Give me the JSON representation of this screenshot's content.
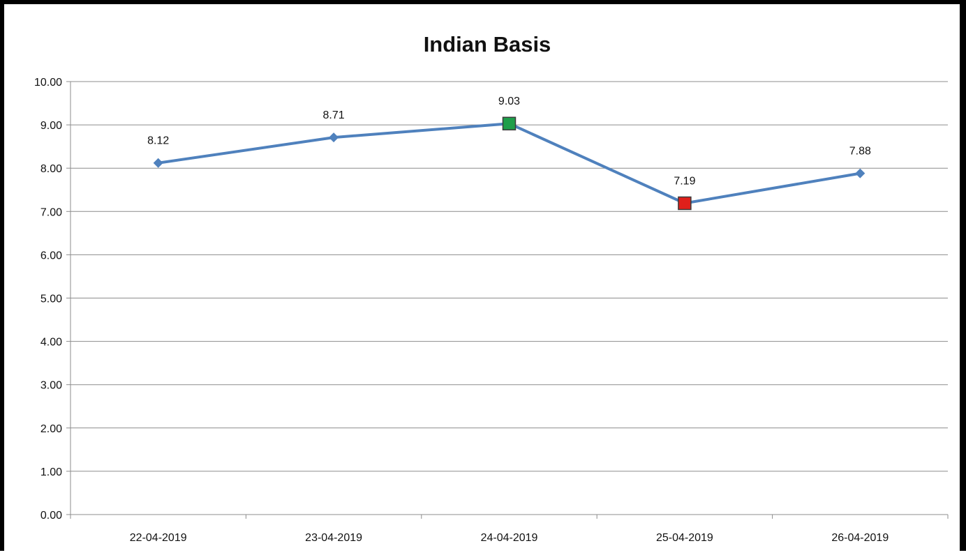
{
  "chart_data": {
    "type": "line",
    "title": "Indian Basis",
    "xlabel": "",
    "ylabel": "",
    "categories": [
      "22-04-2019",
      "23-04-2019",
      "24-04-2019",
      "25-04-2019",
      "26-04-2019"
    ],
    "values": [
      8.12,
      8.71,
      9.03,
      7.19,
      7.88
    ],
    "data_labels": [
      "8.12",
      "8.71",
      "9.03",
      "7.19",
      "7.88"
    ],
    "y_ticks": [
      "0.00",
      "1.00",
      "2.00",
      "3.00",
      "4.00",
      "5.00",
      "6.00",
      "7.00",
      "8.00",
      "9.00",
      "10.00"
    ],
    "ylim": [
      0,
      10
    ],
    "grid": true,
    "legend": "none",
    "colors": {
      "line": "#4F81BD",
      "max_marker": "#1E9E4A",
      "min_marker": "#E0201B",
      "gridline": "#8C8C8C",
      "axis": "#8C8C8C"
    },
    "markers": [
      "diamond",
      "diamond",
      "square-max",
      "square-min",
      "diamond"
    ]
  }
}
